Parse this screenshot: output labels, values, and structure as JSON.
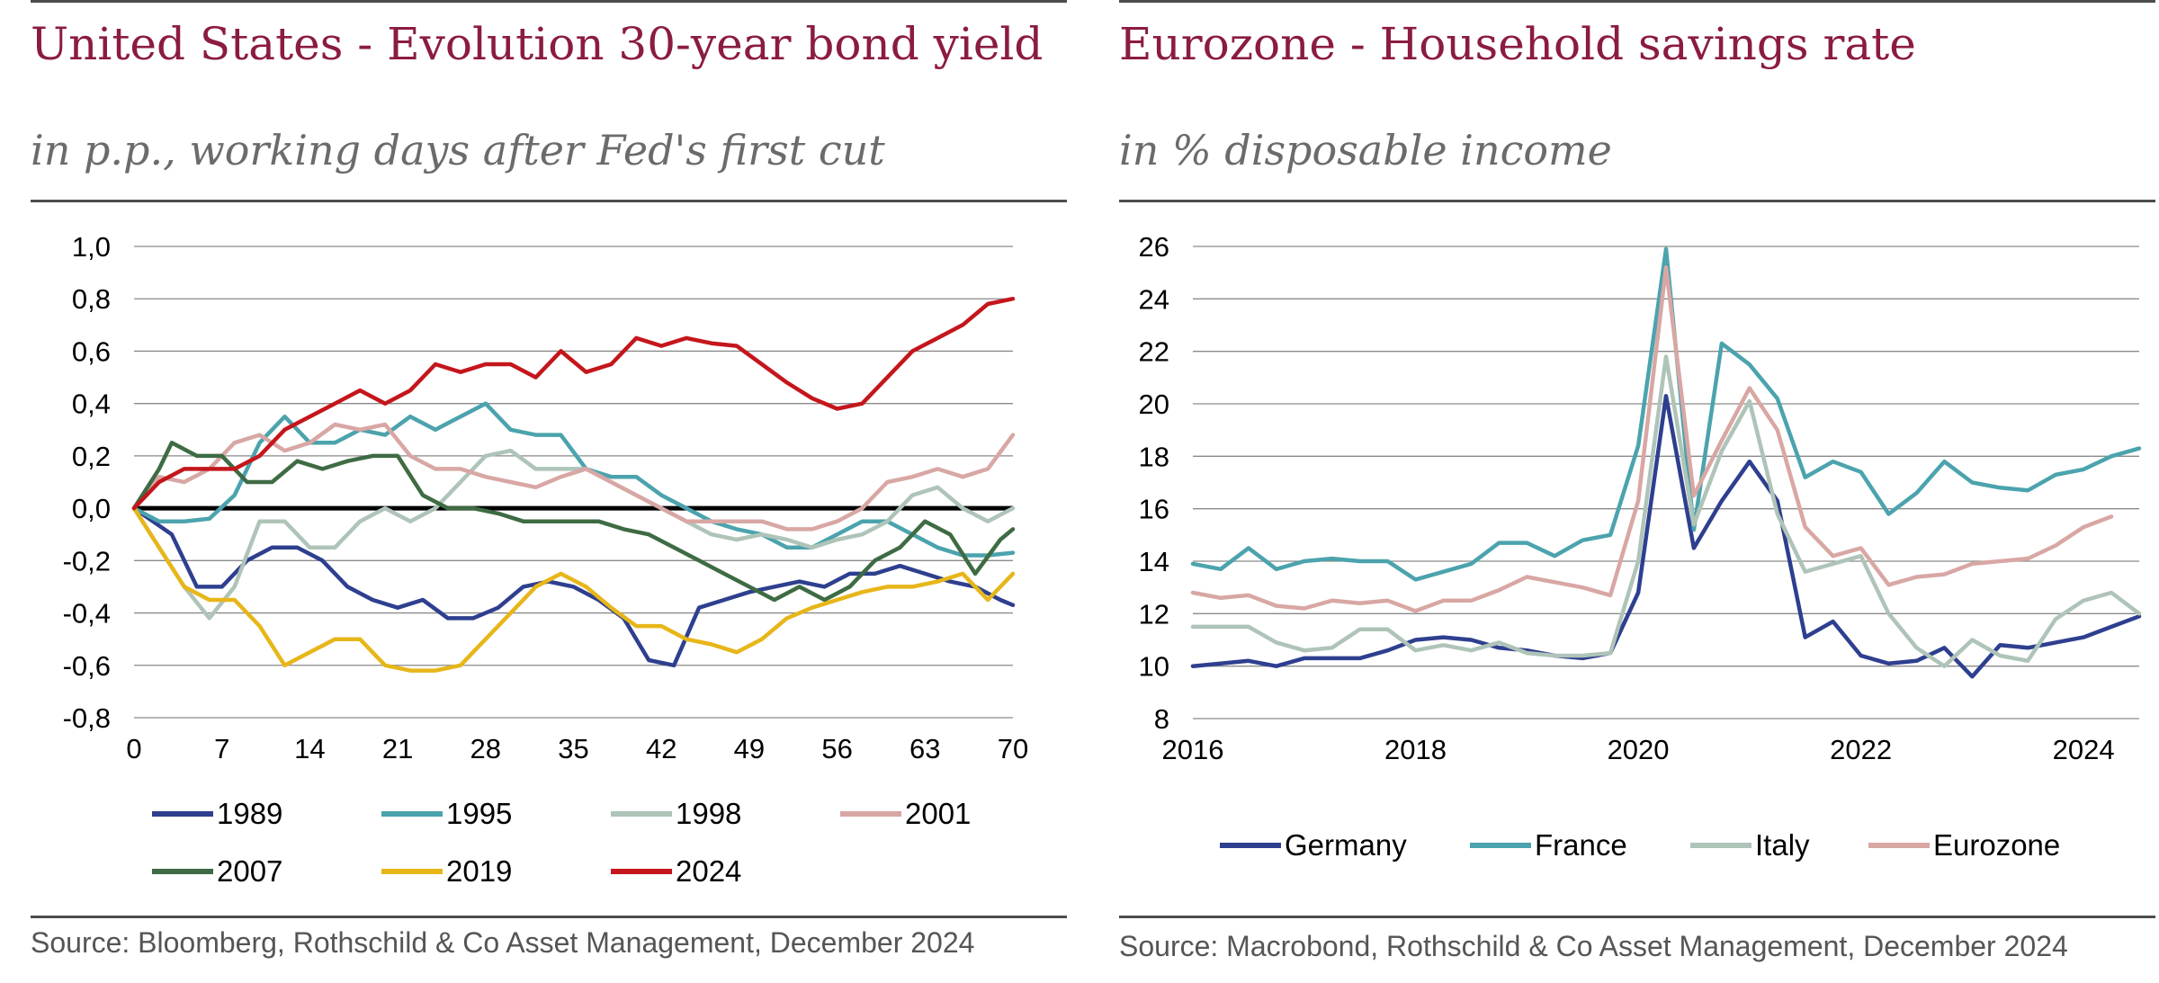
{
  "charts": [
    {
      "title": "United States - Evolution 30-year bond yield",
      "subtitle": "in p.p., working days after Fed's first cut",
      "source": "Source: Bloomberg, Rothschild & Co Asset Management, December 2024"
    },
    {
      "title": "Eurozone - Household savings rate",
      "subtitle": "in % disposable income",
      "source": "Source: Macrobond, Rothschild & Co Asset Management, December 2024"
    }
  ],
  "chart_data": [
    {
      "type": "line",
      "title": "United States - Evolution 30-year bond yield",
      "subtitle": "in p.p., working days after Fed's first cut",
      "xlabel": "",
      "ylabel": "",
      "xlim": [
        0,
        70
      ],
      "ylim": [
        -0.8,
        1.0
      ],
      "x_ticks": [
        "0",
        "7",
        "14",
        "21",
        "28",
        "35",
        "42",
        "49",
        "56",
        "63",
        "70"
      ],
      "y_ticks": [
        "1,0",
        "0,8",
        "0,6",
        "0,4",
        "0,2",
        "0,0",
        "-0,2",
        "-0,4",
        "-0,6",
        "-0,8"
      ],
      "grid": true,
      "legend_position": "bottom",
      "series": [
        {
          "name": "1989",
          "color": "#2e3f8f",
          "x": [
            0,
            3,
            5,
            7,
            9,
            11,
            13,
            15,
            17,
            19,
            21,
            23,
            25,
            27,
            29,
            31,
            33,
            35,
            37,
            39,
            41,
            43,
            45,
            47,
            49,
            51,
            53,
            55,
            57,
            59,
            61,
            63,
            65,
            67,
            69,
            70
          ],
          "y": [
            0,
            -0.1,
            -0.3,
            -0.3,
            -0.2,
            -0.15,
            -0.15,
            -0.2,
            -0.3,
            -0.35,
            -0.38,
            -0.35,
            -0.42,
            -0.42,
            -0.38,
            -0.3,
            -0.28,
            -0.3,
            -0.35,
            -0.42,
            -0.58,
            -0.6,
            -0.38,
            -0.35,
            -0.32,
            -0.3,
            -0.28,
            -0.3,
            -0.25,
            -0.25,
            -0.22,
            -0.25,
            -0.28,
            -0.3,
            -0.35,
            -0.37
          ]
        },
        {
          "name": "1995",
          "color": "#4ba3ad",
          "x": [
            0,
            2,
            4,
            6,
            8,
            10,
            12,
            14,
            16,
            18,
            20,
            22,
            24,
            26,
            28,
            30,
            32,
            34,
            36,
            38,
            40,
            42,
            44,
            46,
            48,
            50,
            52,
            54,
            56,
            58,
            60,
            62,
            64,
            66,
            68,
            70
          ],
          "y": [
            0,
            -0.05,
            -0.05,
            -0.04,
            0.05,
            0.25,
            0.35,
            0.25,
            0.25,
            0.3,
            0.28,
            0.35,
            0.3,
            0.35,
            0.4,
            0.3,
            0.28,
            0.28,
            0.15,
            0.12,
            0.12,
            0.05,
            0.0,
            -0.05,
            -0.08,
            -0.1,
            -0.15,
            -0.15,
            -0.1,
            -0.05,
            -0.05,
            -0.1,
            -0.15,
            -0.18,
            -0.18,
            -0.17
          ]
        },
        {
          "name": "1998",
          "color": "#afc4b8",
          "x": [
            0,
            2,
            4,
            6,
            8,
            10,
            12,
            14,
            16,
            18,
            20,
            22,
            24,
            26,
            28,
            30,
            32,
            34,
            36,
            38,
            40,
            42,
            44,
            46,
            48,
            50,
            52,
            54,
            56,
            58,
            60,
            62,
            64,
            66,
            68,
            70
          ],
          "y": [
            0,
            -0.15,
            -0.3,
            -0.42,
            -0.3,
            -0.05,
            -0.05,
            -0.15,
            -0.15,
            -0.05,
            0.0,
            -0.05,
            0.0,
            0.1,
            0.2,
            0.22,
            0.15,
            0.15,
            0.15,
            0.1,
            0.05,
            0.0,
            -0.05,
            -0.1,
            -0.12,
            -0.1,
            -0.12,
            -0.15,
            -0.12,
            -0.1,
            -0.05,
            0.05,
            0.08,
            0.0,
            -0.05,
            0.0
          ]
        },
        {
          "name": "2001",
          "color": "#d8a7a4",
          "x": [
            0,
            2,
            4,
            6,
            8,
            10,
            12,
            14,
            16,
            18,
            20,
            22,
            24,
            26,
            28,
            30,
            32,
            34,
            36,
            38,
            40,
            42,
            44,
            46,
            48,
            50,
            52,
            54,
            56,
            58,
            60,
            62,
            64,
            66,
            68,
            70
          ],
          "y": [
            0,
            0.12,
            0.1,
            0.15,
            0.25,
            0.28,
            0.22,
            0.25,
            0.32,
            0.3,
            0.32,
            0.2,
            0.15,
            0.15,
            0.12,
            0.1,
            0.08,
            0.12,
            0.15,
            0.1,
            0.05,
            0.0,
            -0.05,
            -0.05,
            -0.05,
            -0.05,
            -0.08,
            -0.08,
            -0.05,
            0.0,
            0.1,
            0.12,
            0.15,
            0.12,
            0.15,
            0.28
          ]
        },
        {
          "name": "2007",
          "color": "#3e6b43",
          "x": [
            0,
            2,
            3,
            5,
            7,
            9,
            11,
            13,
            15,
            17,
            19,
            21,
            23,
            25,
            27,
            29,
            31,
            33,
            35,
            37,
            39,
            41,
            43,
            45,
            47,
            49,
            51,
            53,
            55,
            57,
            59,
            61,
            63,
            65,
            67,
            69,
            70
          ],
          "y": [
            0,
            0.15,
            0.25,
            0.2,
            0.2,
            0.1,
            0.1,
            0.18,
            0.15,
            0.18,
            0.2,
            0.2,
            0.05,
            0.0,
            0.0,
            -0.02,
            -0.05,
            -0.05,
            -0.05,
            -0.05,
            -0.08,
            -0.1,
            -0.15,
            -0.2,
            -0.25,
            -0.3,
            -0.35,
            -0.3,
            -0.35,
            -0.3,
            -0.2,
            -0.15,
            -0.05,
            -0.1,
            -0.25,
            -0.12,
            -0.08
          ]
        },
        {
          "name": "2019",
          "color": "#e7b619",
          "x": [
            0,
            2,
            4,
            6,
            8,
            10,
            12,
            14,
            16,
            18,
            20,
            22,
            24,
            26,
            28,
            30,
            32,
            34,
            36,
            38,
            40,
            42,
            44,
            46,
            48,
            50,
            52,
            54,
            56,
            58,
            60,
            62,
            64,
            66,
            68,
            70
          ],
          "y": [
            0,
            -0.15,
            -0.3,
            -0.35,
            -0.35,
            -0.45,
            -0.6,
            -0.55,
            -0.5,
            -0.5,
            -0.6,
            -0.62,
            -0.62,
            -0.6,
            -0.5,
            -0.4,
            -0.3,
            -0.25,
            -0.3,
            -0.38,
            -0.45,
            -0.45,
            -0.5,
            -0.52,
            -0.55,
            -0.5,
            -0.42,
            -0.38,
            -0.35,
            -0.32,
            -0.3,
            -0.3,
            -0.28,
            -0.25,
            -0.35,
            -0.25
          ]
        },
        {
          "name": "2024",
          "color": "#c4161c",
          "x": [
            0,
            2,
            4,
            6,
            8,
            10,
            12,
            14,
            16,
            18,
            20,
            22,
            24,
            26,
            28,
            30,
            32,
            34,
            36,
            38,
            40,
            42,
            44,
            46,
            48,
            50,
            52,
            54,
            56,
            58,
            60,
            62,
            64,
            66,
            68,
            70
          ],
          "y": [
            0,
            0.1,
            0.15,
            0.15,
            0.15,
            0.2,
            0.3,
            0.35,
            0.4,
            0.45,
            0.4,
            0.45,
            0.55,
            0.52,
            0.55,
            0.55,
            0.5,
            0.6,
            0.52,
            0.55,
            0.65,
            0.62,
            0.65,
            0.63,
            0.62,
            0.55,
            0.48,
            0.42,
            0.38,
            0.4,
            0.5,
            0.6,
            0.65,
            0.7,
            0.78,
            0.8
          ]
        }
      ]
    },
    {
      "type": "line",
      "title": "Eurozone - Household savings rate",
      "subtitle": "in % disposable income",
      "xlabel": "",
      "ylabel": "",
      "xlim": [
        2016,
        2024.5
      ],
      "ylim": [
        8,
        26
      ],
      "x_ticks": [
        "2016",
        "2018",
        "2020",
        "2022",
        "2024"
      ],
      "y_ticks": [
        "26",
        "24",
        "22",
        "20",
        "18",
        "16",
        "14",
        "12",
        "10",
        "8"
      ],
      "grid": true,
      "legend_position": "bottom",
      "x": [
        2016.0,
        2016.25,
        2016.5,
        2016.75,
        2017.0,
        2017.25,
        2017.5,
        2017.75,
        2018.0,
        2018.25,
        2018.5,
        2018.75,
        2019.0,
        2019.25,
        2019.5,
        2019.75,
        2020.0,
        2020.25,
        2020.5,
        2020.75,
        2021.0,
        2021.25,
        2021.5,
        2021.75,
        2022.0,
        2022.25,
        2022.5,
        2022.75,
        2023.0,
        2023.25,
        2023.5,
        2023.75,
        2024.0,
        2024.25,
        2024.5
      ],
      "series": [
        {
          "name": "Germany",
          "color": "#2e3f8f",
          "values": [
            10.0,
            10.1,
            10.2,
            10.0,
            10.3,
            10.3,
            10.3,
            10.6,
            11.0,
            11.1,
            11.0,
            10.7,
            10.6,
            10.4,
            10.3,
            10.5,
            12.8,
            20.3,
            14.5,
            16.3,
            17.8,
            16.3,
            11.1,
            11.7,
            10.4,
            10.1,
            10.2,
            10.7,
            9.6,
            10.8,
            10.7,
            10.9,
            11.1,
            11.5,
            11.9
          ]
        },
        {
          "name": "France",
          "color": "#4ba3ad",
          "values": [
            13.9,
            13.7,
            14.5,
            13.7,
            14.0,
            14.1,
            14.0,
            14.0,
            13.3,
            13.6,
            13.9,
            14.7,
            14.7,
            14.2,
            14.8,
            15.0,
            18.4,
            25.9,
            15.2,
            22.3,
            21.5,
            20.2,
            17.2,
            17.8,
            17.4,
            15.8,
            16.6,
            17.8,
            17.0,
            16.8,
            16.7,
            17.3,
            17.5,
            18.0,
            18.3
          ]
        },
        {
          "name": "Italy",
          "color": "#afc4b8",
          "values": [
            11.5,
            11.5,
            11.5,
            10.9,
            10.6,
            10.7,
            11.4,
            11.4,
            10.6,
            10.8,
            10.6,
            10.9,
            10.5,
            10.4,
            10.4,
            10.5,
            14.0,
            21.8,
            15.4,
            18.2,
            20.1,
            15.8,
            13.6,
            13.9,
            14.2,
            12.0,
            10.7,
            10.0,
            11.0,
            10.4,
            10.2,
            11.8,
            12.5,
            12.8,
            12.0
          ]
        },
        {
          "name": "Eurozone",
          "color": "#d8a7a4",
          "values": [
            12.8,
            12.6,
            12.7,
            12.3,
            12.2,
            12.5,
            12.4,
            12.5,
            12.1,
            12.5,
            12.5,
            12.9,
            13.4,
            13.2,
            13.0,
            12.7,
            16.3,
            25.2,
            16.5,
            18.6,
            20.6,
            19.0,
            15.3,
            14.2,
            14.5,
            13.1,
            13.4,
            13.5,
            13.9,
            14.0,
            14.1,
            14.6,
            15.3,
            15.7,
            null
          ]
        }
      ]
    }
  ]
}
